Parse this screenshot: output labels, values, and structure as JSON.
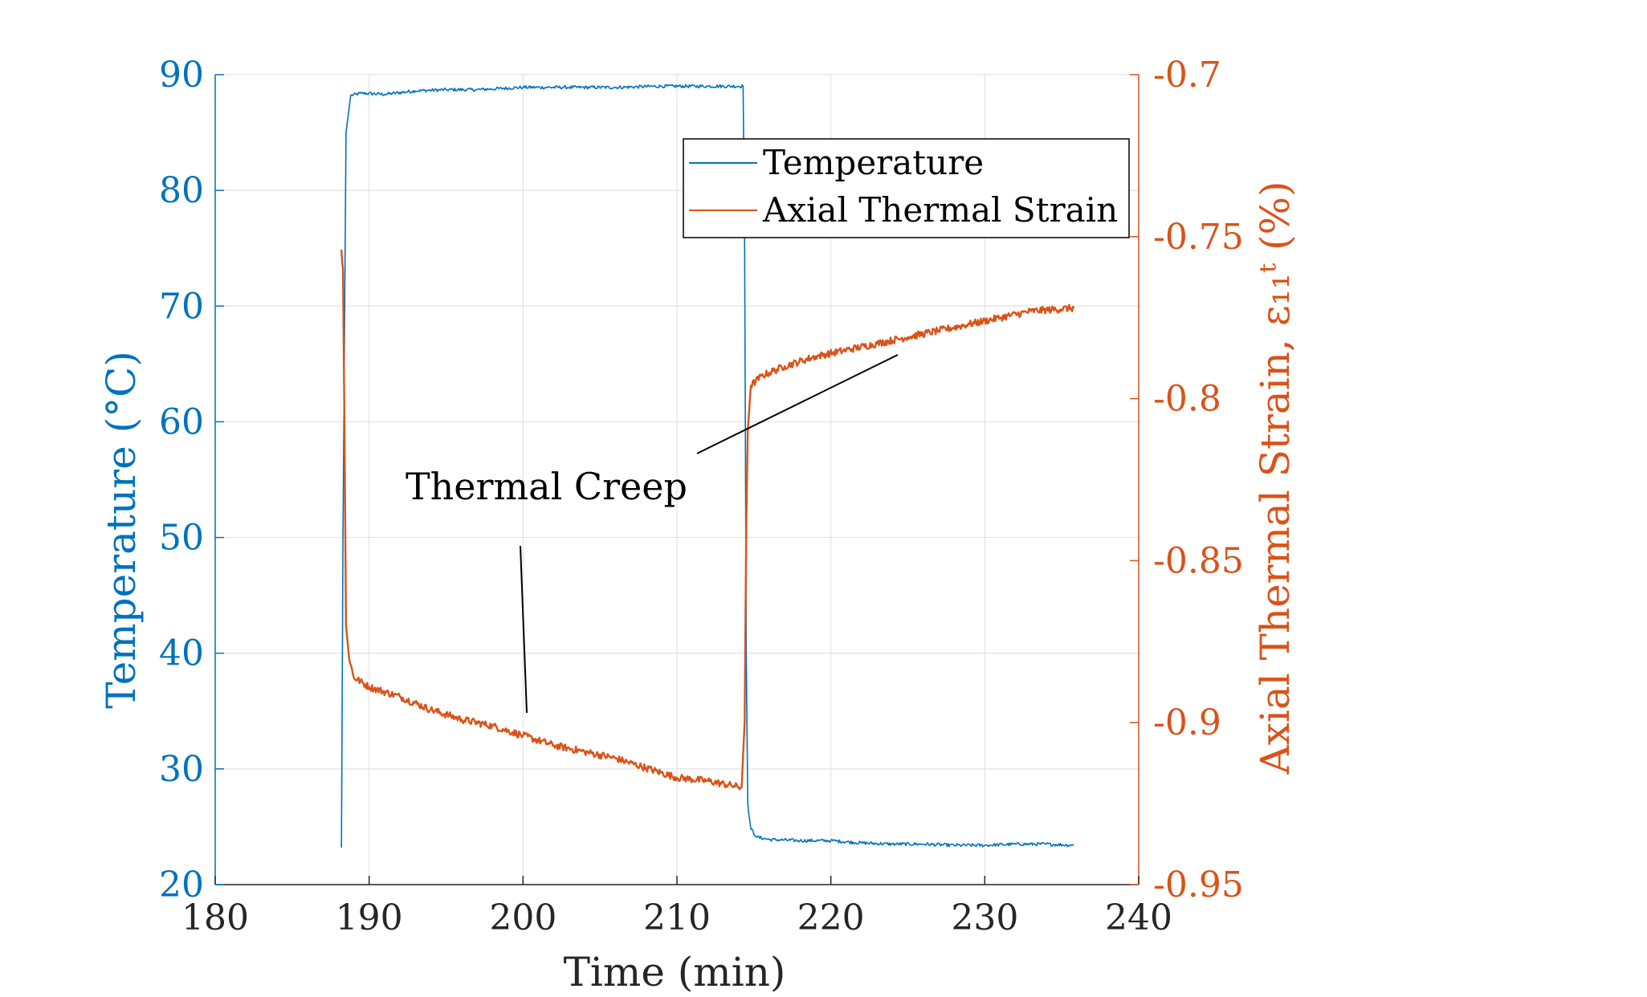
{
  "chart_data": {
    "type": "line",
    "xlabel": "Time (min)",
    "ylabel_left": "Temperature (°C)",
    "ylabel_right": "Axial Thermal Strain, ε₁₁ᵗ (%)",
    "xlim": [
      180,
      240
    ],
    "ylim_left": [
      20,
      90
    ],
    "ylim_right": [
      -0.95,
      -0.7
    ],
    "x_ticks": [
      "180",
      "190",
      "200",
      "210",
      "220",
      "230",
      "240"
    ],
    "y_ticks_left": [
      "20",
      "30",
      "40",
      "50",
      "60",
      "70",
      "80",
      "90"
    ],
    "y_ticks_right": [
      "-0.95",
      "-0.9",
      "-0.85",
      "-0.8",
      "-0.75",
      "-0.7"
    ],
    "grid": true,
    "legend_position": "top-right",
    "annotation": "Thermal Creep",
    "series": [
      {
        "name": "Temperature",
        "axis": "left",
        "color": "#0072BD",
        "x": [
          188.2,
          188.3,
          188.5,
          188.8,
          189.5,
          191,
          193,
          195,
          197,
          200,
          203,
          206,
          209,
          212,
          214.3,
          214.4,
          214.5,
          214.6,
          214.8,
          215.2,
          216,
          218,
          220,
          222,
          224,
          226,
          228,
          230,
          232,
          234,
          235.8
        ],
        "y": [
          23.2,
          50.0,
          85.0,
          88.2,
          88.4,
          88.3,
          88.6,
          88.7,
          88.7,
          88.9,
          88.9,
          88.9,
          89.0,
          89.0,
          89.0,
          75.0,
          40.0,
          27.0,
          24.8,
          24.1,
          23.9,
          23.8,
          23.8,
          23.6,
          23.5,
          23.5,
          23.4,
          23.4,
          23.5,
          23.5,
          23.4
        ]
      },
      {
        "name": "Axial Thermal Strain",
        "axis": "right",
        "color": "#D95319",
        "x": [
          188.2,
          188.3,
          188.4,
          188.5,
          188.7,
          189,
          190,
          192,
          194,
          196,
          198,
          200,
          202,
          204,
          206,
          208,
          210,
          212,
          214.2,
          214.4,
          214.5,
          214.6,
          214.8,
          215.5,
          217,
          219,
          221,
          223,
          225,
          227,
          229,
          231,
          233,
          235.8
        ],
        "y": [
          -0.754,
          -0.76,
          -0.81,
          -0.87,
          -0.88,
          -0.886,
          -0.889,
          -0.892,
          -0.896,
          -0.899,
          -0.901,
          -0.904,
          -0.907,
          -0.909,
          -0.911,
          -0.914,
          -0.917,
          -0.918,
          -0.92,
          -0.9,
          -0.84,
          -0.81,
          -0.796,
          -0.793,
          -0.79,
          -0.787,
          -0.785,
          -0.783,
          -0.781,
          -0.779,
          -0.777,
          -0.775,
          -0.773,
          -0.772
        ]
      }
    ]
  }
}
